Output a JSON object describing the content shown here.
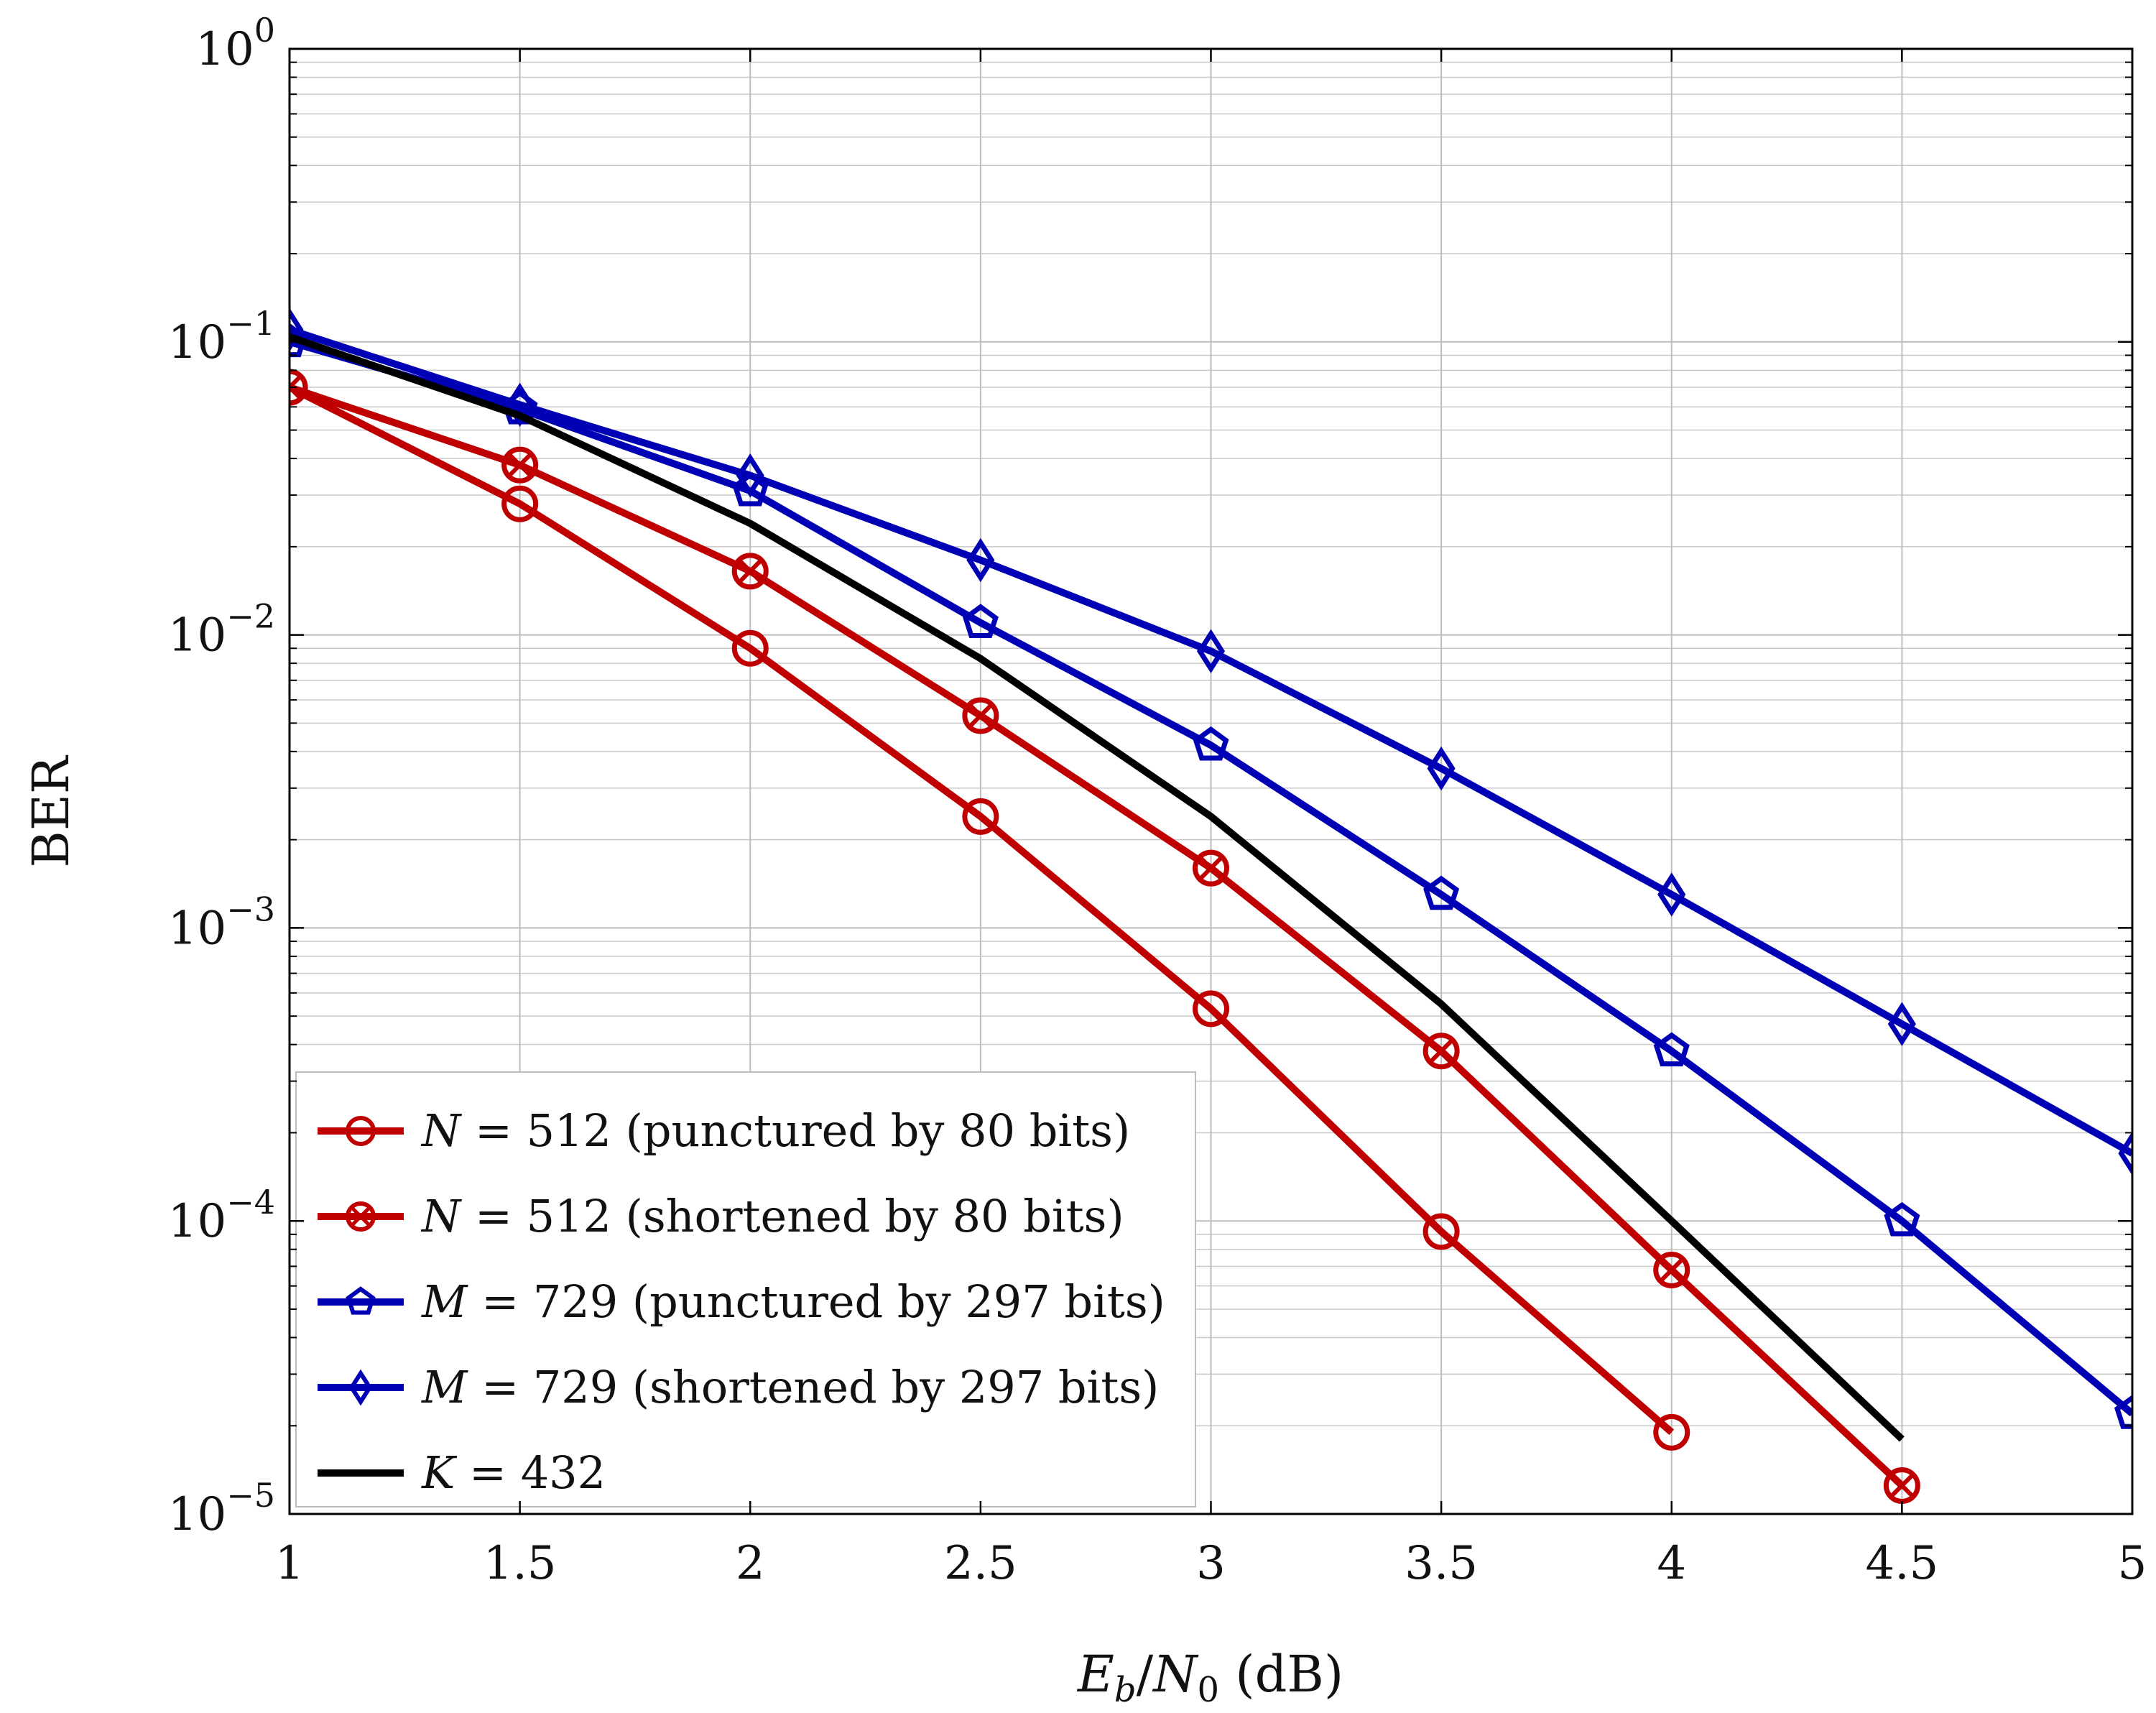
{
  "chart_data": {
    "type": "line",
    "xlabel": "E_b/N_0 (dB)",
    "xlabel_parts": {
      "base": "E",
      "base_sub": "b",
      "slash": "/",
      "denom": "N",
      "denom_sub": "0",
      "unit": " (dB)"
    },
    "ylabel": "BER",
    "yscale": "log",
    "xlim": [
      1,
      5
    ],
    "ylim": [
      1e-05,
      1
    ],
    "xticks": [
      {
        "value": 1,
        "label": "1"
      },
      {
        "value": 1.5,
        "label": "1.5"
      },
      {
        "value": 2,
        "label": "2"
      },
      {
        "value": 2.5,
        "label": "2.5"
      },
      {
        "value": 3,
        "label": "3"
      },
      {
        "value": 3.5,
        "label": "3.5"
      },
      {
        "value": 4,
        "label": "4"
      },
      {
        "value": 4.5,
        "label": "4.5"
      },
      {
        "value": 5,
        "label": "5"
      }
    ],
    "yticks": [
      {
        "value": 1,
        "base": "10",
        "exp": "0"
      },
      {
        "value": 0.1,
        "base": "10",
        "exp": "−1"
      },
      {
        "value": 0.01,
        "base": "10",
        "exp": "−2"
      },
      {
        "value": 0.001,
        "base": "10",
        "exp": "−3"
      },
      {
        "value": 0.0001,
        "base": "10",
        "exp": "−4"
      },
      {
        "value": 1e-05,
        "base": "10",
        "exp": "−5"
      }
    ],
    "grid": true,
    "legend_position": "bottom-left",
    "series": [
      {
        "name": "N = 512 (punctured by 80 bits)",
        "legend_var": "N",
        "legend_rest": " = 512 (punctured by 80 bits)",
        "color": "#c00000",
        "marker": "circle",
        "x": [
          1,
          1.5,
          2,
          2.5,
          3,
          3.5,
          4
        ],
        "y": [
          0.07,
          0.028,
          0.009,
          0.0024,
          0.00053,
          9.2e-05,
          1.9e-05
        ]
      },
      {
        "name": "N = 512 (shortened by 80 bits)",
        "legend_var": "N",
        "legend_rest": " = 512 (shortened by 80 bits)",
        "color": "#c00000",
        "marker": "otimes",
        "x": [
          1,
          1.5,
          2,
          2.5,
          3,
          3.5,
          4,
          4.5
        ],
        "y": [
          0.07,
          0.038,
          0.0165,
          0.0053,
          0.0016,
          0.00038,
          6.8e-05,
          1.25e-05
        ]
      },
      {
        "name": "M = 729 (punctured by 297 bits)",
        "legend_var": "M",
        "legend_rest": " = 729 (punctured by 297 bits)",
        "color": "#0000b4",
        "marker": "pentagon",
        "x": [
          1,
          1.5,
          2,
          2.5,
          3,
          3.5,
          4,
          4.5,
          5
        ],
        "y": [
          0.1,
          0.059,
          0.031,
          0.011,
          0.0042,
          0.0013,
          0.00038,
          0.0001,
          2.2e-05
        ]
      },
      {
        "name": "M = 729 (shortened by 297 bits)",
        "legend_var": "M",
        "legend_rest": " = 729 (shortened by 297 bits)",
        "color": "#0000b4",
        "marker": "diamond",
        "x": [
          1,
          1.5,
          2,
          2.5,
          3,
          3.5,
          4,
          4.5,
          5
        ],
        "y": [
          0.11,
          0.061,
          0.035,
          0.018,
          0.0088,
          0.0035,
          0.0013,
          0.00047,
          0.00017
        ]
      },
      {
        "name": "K = 432",
        "legend_var": "K",
        "legend_rest": " = 432",
        "color": "#000000",
        "marker": "none",
        "x": [
          1,
          1.5,
          2,
          2.5,
          3,
          3.5,
          4,
          4.5
        ],
        "y": [
          0.104,
          0.056,
          0.024,
          0.0083,
          0.0024,
          0.00055,
          0.0001,
          1.8e-05
        ]
      }
    ]
  }
}
